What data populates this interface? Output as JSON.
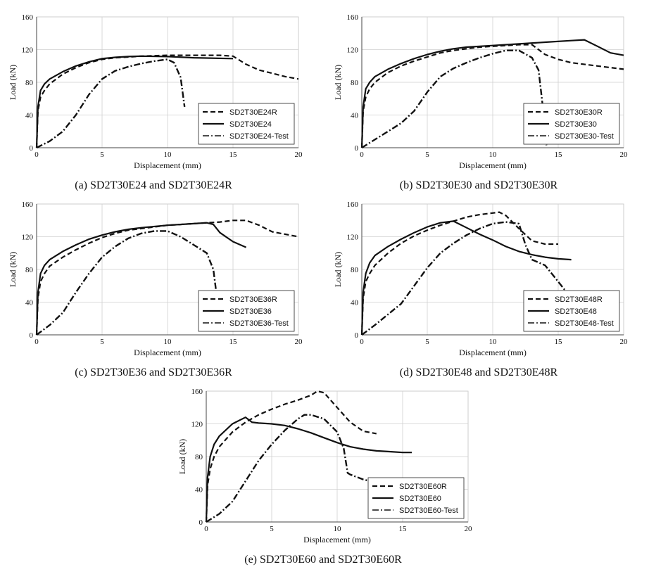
{
  "chart_data": [
    {
      "type": "line",
      "caption": "(a) SD2T30E24 and SD2T30E24R",
      "xlabel": "Displacement (mm)",
      "ylabel": "Load (kN)",
      "xlim": [
        0,
        20
      ],
      "ylim": [
        0,
        160
      ],
      "xticks": [
        0,
        5,
        10,
        15,
        20
      ],
      "yticks": [
        0,
        40,
        80,
        120,
        160
      ],
      "grid": true,
      "legend_position": "bottom-right",
      "series": [
        {
          "name": "SD2T30E24R",
          "style": "dashed",
          "x": [
            0,
            0.1,
            0.3,
            0.6,
            1,
            2,
            3,
            4,
            5,
            6,
            7,
            8,
            10,
            12,
            14,
            15,
            16,
            17,
            18,
            19,
            20
          ],
          "y": [
            0,
            45,
            62,
            70,
            78,
            90,
            98,
            104,
            108,
            110,
            111,
            112,
            113,
            113,
            113,
            112,
            102,
            95,
            91,
            87,
            84
          ]
        },
        {
          "name": "SD2T30E24",
          "style": "solid",
          "x": [
            0,
            0.1,
            0.3,
            0.6,
            1,
            2,
            3,
            4,
            5,
            6,
            7,
            8,
            10,
            12,
            15
          ],
          "y": [
            0,
            50,
            70,
            78,
            84,
            93,
            100,
            105,
            109,
            110.5,
            111.5,
            112,
            111.5,
            110,
            109
          ]
        },
        {
          "name": "SD2T30E24-Test",
          "style": "dash-dot",
          "x": [
            0,
            1,
            2,
            3,
            4,
            5,
            6,
            7,
            8,
            9,
            10,
            10.5,
            11,
            11.3
          ],
          "y": [
            0,
            8,
            20,
            40,
            65,
            84,
            94,
            99,
            103,
            106,
            108,
            104,
            86,
            50
          ]
        }
      ]
    },
    {
      "type": "line",
      "caption": "(b) SD2T30E30 and SD2T30E30R",
      "xlabel": "Displacement (mm)",
      "ylabel": "Load (kN)",
      "xlim": [
        0,
        20
      ],
      "ylim": [
        0,
        160
      ],
      "xticks": [
        0,
        5,
        10,
        15,
        20
      ],
      "yticks": [
        0,
        40,
        80,
        120,
        160
      ],
      "grid": true,
      "legend_position": "bottom-right",
      "series": [
        {
          "name": "SD2T30E30R",
          "style": "dashed",
          "x": [
            0,
            0.1,
            0.3,
            0.6,
            1,
            2,
            3,
            4,
            5,
            6,
            7,
            8,
            9,
            10,
            11,
            12,
            13,
            14,
            15,
            16,
            18,
            20
          ],
          "y": [
            0,
            45,
            62,
            72,
            80,
            92,
            100,
            106,
            111,
            116,
            119,
            121,
            123,
            124,
            125,
            126,
            126,
            114,
            108,
            104,
            100,
            96
          ]
        },
        {
          "name": "SD2T30E30",
          "style": "solid",
          "x": [
            0,
            0.1,
            0.3,
            0.6,
            1,
            2,
            3,
            4,
            5,
            6,
            7,
            8,
            10,
            12,
            14,
            16,
            17,
            18,
            19,
            20
          ],
          "y": [
            0,
            50,
            72,
            80,
            87,
            96,
            103,
            109,
            114,
            118,
            121,
            123,
            125,
            127,
            129,
            131,
            132,
            124,
            116,
            113
          ]
        },
        {
          "name": "SD2T30E30-Test",
          "style": "dash-dot",
          "x": [
            0,
            1,
            2,
            3,
            4,
            5,
            6,
            7,
            8,
            9,
            10,
            11,
            12,
            13,
            13.5,
            13.9,
            14.1
          ],
          "y": [
            0,
            10,
            20,
            30,
            45,
            68,
            87,
            97,
            104,
            110,
            115,
            119,
            119,
            110,
            95,
            40,
            3
          ]
        }
      ]
    },
    {
      "type": "line",
      "caption": "(c) SD2T30E36 and SD2T30E36R",
      "xlabel": "Displacement (mm)",
      "ylabel": "Load (kN)",
      "xlim": [
        0,
        20
      ],
      "ylim": [
        0,
        160
      ],
      "xticks": [
        0,
        5,
        10,
        15,
        20
      ],
      "yticks": [
        0,
        40,
        80,
        120,
        160
      ],
      "grid": true,
      "legend_position": "bottom-right",
      "series": [
        {
          "name": "SD2T30E36R",
          "style": "dashed",
          "x": [
            0,
            0.1,
            0.3,
            0.6,
            1,
            2,
            3,
            4,
            5,
            6,
            7,
            8,
            10,
            12,
            14,
            15,
            16,
            17,
            18,
            19,
            20
          ],
          "y": [
            0,
            45,
            65,
            75,
            84,
            95,
            104,
            112,
            119,
            124,
            128,
            130,
            134,
            136,
            138,
            140,
            140,
            134,
            126,
            123,
            120
          ]
        },
        {
          "name": "SD2T30E36",
          "style": "solid",
          "x": [
            0,
            0.1,
            0.3,
            0.6,
            1,
            2,
            3,
            4,
            5,
            6,
            7,
            8,
            10,
            12,
            13,
            13.5,
            14,
            15,
            16
          ],
          "y": [
            0,
            52,
            75,
            85,
            92,
            102,
            110,
            117,
            122,
            126,
            129,
            131,
            134,
            136,
            137,
            135,
            125,
            114,
            107
          ]
        },
        {
          "name": "SD2T30E36-Test",
          "style": "dash-dot",
          "x": [
            0,
            1,
            2,
            3,
            4,
            5,
            6,
            7,
            8,
            9,
            10,
            11,
            12,
            13,
            13.5,
            13.7
          ],
          "y": [
            0,
            12,
            27,
            52,
            75,
            95,
            108,
            118,
            124,
            127,
            127,
            120,
            110,
            100,
            80,
            55
          ]
        }
      ]
    },
    {
      "type": "line",
      "caption": "(d) SD2T30E48 and SD2T30E48R",
      "xlabel": "Displacement (mm)",
      "ylabel": "Load (kN)",
      "xlim": [
        0,
        20
      ],
      "ylim": [
        0,
        160
      ],
      "xticks": [
        0,
        5,
        10,
        15,
        20
      ],
      "yticks": [
        0,
        40,
        80,
        120,
        160
      ],
      "grid": true,
      "legend_position": "bottom-right",
      "series": [
        {
          "name": "SD2T30E48R",
          "style": "dashed",
          "x": [
            0,
            0.1,
            0.3,
            0.6,
            1,
            2,
            3,
            4,
            5,
            6,
            7,
            8,
            9,
            10,
            10.5,
            11,
            12,
            13,
            14,
            15
          ],
          "y": [
            0,
            45,
            65,
            75,
            85,
            100,
            112,
            121,
            128,
            134,
            139,
            144,
            147,
            149,
            150,
            146,
            130,
            115,
            111,
            111
          ]
        },
        {
          "name": "SD2T30E48",
          "style": "solid",
          "x": [
            0,
            0.1,
            0.3,
            0.6,
            1,
            2,
            3,
            4,
            5,
            6,
            7,
            8,
            9,
            10,
            11,
            12,
            13,
            14,
            15,
            16
          ],
          "y": [
            0,
            52,
            75,
            88,
            97,
            108,
            117,
            125,
            132,
            137,
            139,
            131,
            123,
            116,
            108,
            102,
            98,
            95,
            93,
            92
          ]
        },
        {
          "name": "SD2T30E48-Test",
          "style": "dash-dot",
          "x": [
            0,
            1,
            2,
            3,
            4,
            5,
            6,
            7,
            8,
            9,
            10,
            11,
            12,
            12.5,
            13,
            14,
            15,
            15.5
          ],
          "y": [
            0,
            12,
            25,
            38,
            60,
            82,
            100,
            112,
            122,
            130,
            136,
            138,
            136,
            110,
            92,
            85,
            65,
            55
          ]
        }
      ]
    },
    {
      "type": "line",
      "caption": "(e) SD2T30E60 and SD2T30E60R",
      "xlabel": "Displacement (mm)",
      "ylabel": "Load (kN)",
      "xlim": [
        0,
        20
      ],
      "ylim": [
        0,
        160
      ],
      "xticks": [
        0,
        5,
        10,
        15,
        20
      ],
      "yticks": [
        0,
        40,
        80,
        120,
        160
      ],
      "grid": true,
      "legend_position": "bottom-right",
      "series": [
        {
          "name": "SD2T30E60R",
          "style": "dashed",
          "x": [
            0,
            0.1,
            0.3,
            0.6,
            1,
            2,
            3,
            4,
            5,
            6,
            7,
            8,
            8.5,
            9,
            10,
            11,
            12,
            13
          ],
          "y": [
            0,
            45,
            65,
            80,
            92,
            110,
            122,
            131,
            138,
            144,
            149,
            155,
            160,
            158,
            140,
            122,
            111,
            108
          ]
        },
        {
          "name": "SD2T30E60",
          "style": "solid",
          "x": [
            0,
            0.1,
            0.3,
            0.6,
            1,
            2,
            3,
            3.5,
            4,
            5,
            6,
            7,
            8,
            9,
            10,
            11,
            12,
            13,
            14,
            15,
            15.7
          ],
          "y": [
            0,
            55,
            80,
            95,
            105,
            120,
            128,
            122,
            121,
            120,
            118,
            114,
            109,
            103,
            97,
            92,
            89,
            87,
            86,
            85,
            85
          ]
        },
        {
          "name": "SD2T30E60-Test",
          "style": "dash-dot",
          "x": [
            0,
            1,
            2,
            3,
            4,
            5,
            6,
            7,
            7.5,
            8,
            9,
            10,
            10.5,
            10.8,
            11,
            12,
            12.5
          ],
          "y": [
            0,
            10,
            25,
            50,
            75,
            95,
            112,
            126,
            131,
            131,
            126,
            110,
            90,
            60,
            58,
            52,
            50
          ]
        }
      ]
    }
  ]
}
